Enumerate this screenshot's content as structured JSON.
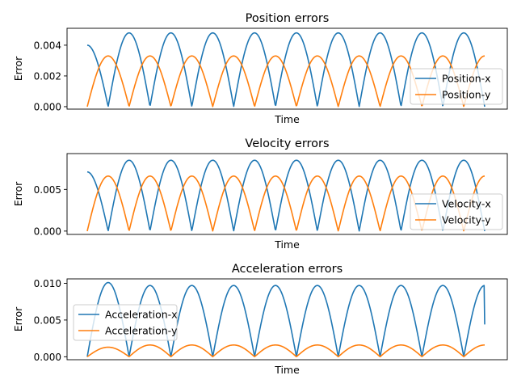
{
  "chart_data": [
    {
      "type": "line",
      "title": "Position errors",
      "xlabel": "Time",
      "ylabel": "Error",
      "ylim": [
        -0.00016,
        0.0051
      ],
      "yticks": [
        "0.000",
        "0.002",
        "0.004"
      ],
      "ytick_values": [
        0,
        0.002,
        0.004
      ],
      "xticks": [],
      "legend": "lower right",
      "grid": false,
      "series": [
        {
          "name": "Position-x",
          "color": "#1f77b4",
          "shape": "abs_sin",
          "amp": 0.0048,
          "period": 1,
          "phase": 0.5,
          "start_amp": 0.004
        },
        {
          "name": "Position-y",
          "color": "#ff7f0e",
          "shape": "abs_sin",
          "amp": 0.0033,
          "period": 1,
          "phase": 0.0,
          "start_amp": 0.0033
        }
      ]
    },
    {
      "type": "line",
      "title": "Velocity errors",
      "xlabel": "Time",
      "ylabel": "Error",
      "ylim": [
        -0.0004,
        0.0093
      ],
      "yticks": [
        "0.000",
        "0.005"
      ],
      "ytick_values": [
        0,
        0.005
      ],
      "xticks": [],
      "legend": "lower right",
      "grid": false,
      "series": [
        {
          "name": "Velocity-x",
          "color": "#1f77b4",
          "shape": "abs_sin",
          "amp": 0.0085,
          "period": 1,
          "phase": 0.5,
          "start_amp": 0.0071
        },
        {
          "name": "Velocity-y",
          "color": "#ff7f0e",
          "shape": "abs_sin",
          "amp": 0.0066,
          "period": 1,
          "phase": 0.0,
          "start_amp": 0.0066
        }
      ]
    },
    {
      "type": "line",
      "title": "Acceleration errors",
      "xlabel": "Time",
      "ylabel": "Error",
      "ylim": [
        -0.0004,
        0.0106
      ],
      "yticks": [
        "0.000",
        "0.005",
        "0.010"
      ],
      "ytick_values": [
        0,
        0.005,
        0.01
      ],
      "xticks": [],
      "legend": "center left",
      "grid": false,
      "series": [
        {
          "name": "Acceleration-x",
          "color": "#1f77b4",
          "shape": "abs_sin",
          "amp": 0.0097,
          "period": 1,
          "phase": 0.0,
          "first_amp": 0.0101,
          "end_value": 0.0044
        },
        {
          "name": "Acceleration-y",
          "color": "#ff7f0e",
          "shape": "abs_sin",
          "amp": 0.0016,
          "period": 1,
          "phase": 0.0,
          "first_amp": 0.0013
        }
      ]
    }
  ]
}
